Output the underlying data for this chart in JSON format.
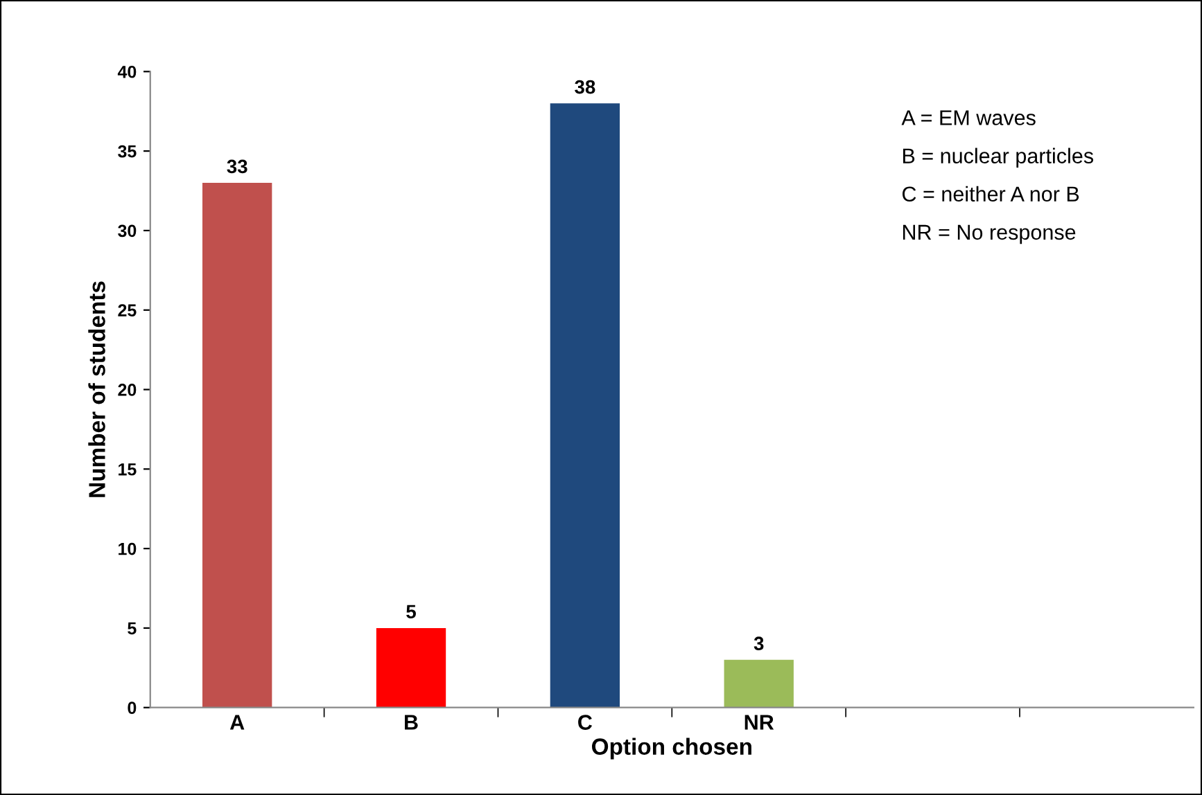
{
  "chart_data": {
    "type": "bar",
    "categories": [
      "A",
      "B",
      "C",
      "NR",
      null,
      null
    ],
    "values": [
      33,
      5,
      38,
      3,
      null,
      null
    ],
    "colors": [
      "#c0504d",
      "#ff0000",
      "#1f497d",
      "#9bbb59",
      "#ffffff",
      "#ffffff"
    ],
    "xlabel": "Option chosen",
    "ylabel": "Number of students",
    "ylim": [
      0,
      40
    ],
    "yticks": [
      0,
      5,
      10,
      15,
      20,
      25,
      30,
      35,
      40
    ],
    "grid": false,
    "data_labels": true,
    "annotations": [
      "A = EM waves",
      "B = nuclear particles",
      "C = neither A nor B",
      "NR = No response"
    ]
  }
}
